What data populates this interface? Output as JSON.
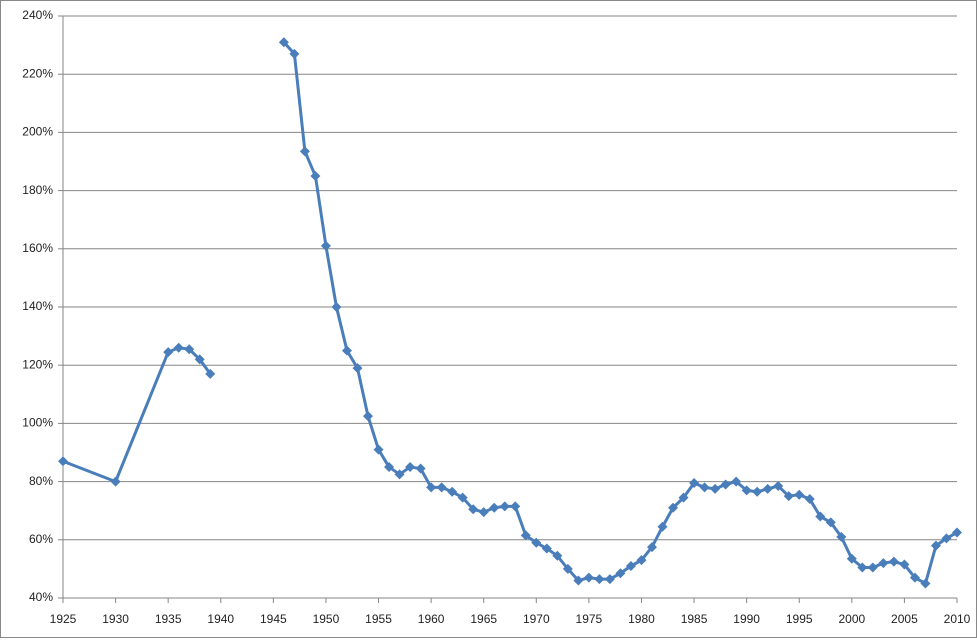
{
  "chart_data": {
    "type": "line",
    "x": [
      1925,
      1930,
      1935,
      1936,
      1937,
      1938,
      1939,
      1940,
      1946,
      1947,
      1948,
      1949,
      1950,
      1951,
      1952,
      1953,
      1954,
      1955,
      1956,
      1957,
      1958,
      1959,
      1960,
      1961,
      1962,
      1963,
      1964,
      1965,
      1966,
      1967,
      1968,
      1969,
      1970,
      1971,
      1972,
      1973,
      1974,
      1975,
      1976,
      1977,
      1978,
      1979,
      1980,
      1981,
      1982,
      1983,
      1984,
      1985,
      1986,
      1987,
      1988,
      1989,
      1990,
      1991,
      1992,
      1993,
      1994,
      1995,
      1996,
      1997,
      1998,
      1999,
      2000,
      2001,
      2002,
      2003,
      2004,
      2005,
      2006,
      2007,
      2008,
      2009,
      2010
    ],
    "values": [
      87,
      80,
      124.5,
      126,
      125.5,
      122,
      117,
      null,
      231,
      227,
      193.5,
      185,
      161,
      140,
      125,
      119,
      102.5,
      91,
      85,
      82.5,
      85,
      84.5,
      78,
      78,
      76.5,
      74.5,
      70.5,
      69.5,
      71,
      71.5,
      71.5,
      61.5,
      59,
      57,
      54.5,
      50,
      46,
      47,
      46.5,
      46.5,
      48.5,
      51,
      53,
      57.5,
      64.5,
      71,
      74.5,
      79.5,
      78,
      77.5,
      79,
      80,
      77,
      76.5,
      77.5,
      78.5,
      75,
      75.5,
      74,
      68,
      66,
      61,
      53.5,
      50.5,
      50.5,
      52,
      52.5,
      51.5,
      47,
      45,
      58,
      60.5,
      62.5
    ],
    "color": "#4a7ebb",
    "xlim": [
      1925,
      2010
    ],
    "xticks": [
      1925,
      1930,
      1935,
      1940,
      1945,
      1950,
      1955,
      1960,
      1965,
      1970,
      1975,
      1980,
      1985,
      1990,
      1995,
      2000,
      2005,
      2010
    ],
    "ylim": [
      40,
      240
    ],
    "yticks": [
      {
        "value": 40,
        "label": "40%"
      },
      {
        "value": 60,
        "label": "60%"
      },
      {
        "value": 80,
        "label": "80%"
      },
      {
        "value": 100,
        "label": "100%"
      },
      {
        "value": 120,
        "label": "120%"
      },
      {
        "value": 140,
        "label": "140%"
      },
      {
        "value": 160,
        "label": "160%"
      },
      {
        "value": 180,
        "label": "180%"
      },
      {
        "value": 200,
        "label": "200%"
      },
      {
        "value": 220,
        "label": "220%"
      },
      {
        "value": 240,
        "label": "240%"
      }
    ],
    "grid": true
  }
}
